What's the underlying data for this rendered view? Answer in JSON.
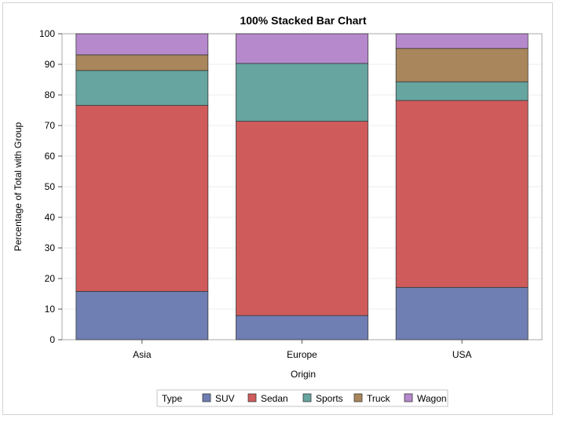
{
  "chart_data": {
    "type": "bar",
    "stacked": true,
    "title": "100% Stacked Bar Chart",
    "xlabel": "Origin",
    "ylabel": "Percentage of Total with Group",
    "categories": [
      "Asia",
      "Europe",
      "USA"
    ],
    "ylim": [
      0,
      100
    ],
    "yticks": [
      0,
      10,
      20,
      30,
      40,
      50,
      60,
      70,
      80,
      90,
      100
    ],
    "grid": true,
    "legend": {
      "title": "Type",
      "placement": "bottom"
    },
    "series": [
      {
        "name": "SUV",
        "color": "#6f7eb3",
        "values": [
          15.8,
          7.9,
          17.1
        ]
      },
      {
        "name": "Sedan",
        "color": "#d05b5b",
        "values": [
          60.8,
          63.5,
          61.1
        ]
      },
      {
        "name": "Sports",
        "color": "#66a5a0",
        "values": [
          11.4,
          18.9,
          6.1
        ]
      },
      {
        "name": "Truck",
        "color": "#a9865b",
        "values": [
          5.1,
          0,
          10.9
        ]
      },
      {
        "name": "Wagon",
        "color": "#b689cd",
        "values": [
          6.9,
          9.7,
          4.8
        ]
      }
    ]
  }
}
